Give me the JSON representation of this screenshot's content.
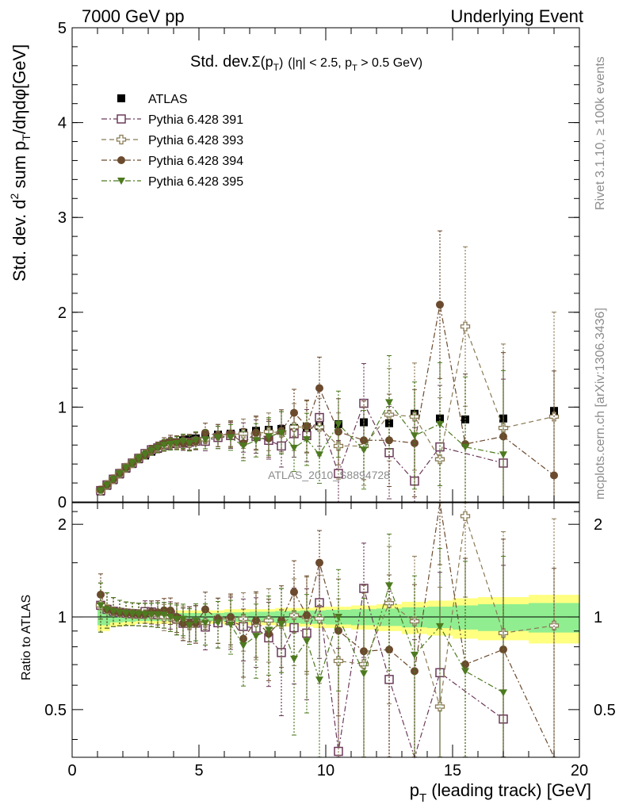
{
  "header": {
    "left": "7000 GeV pp",
    "right": "Underlying Event"
  },
  "side_text": {
    "rivet": "Rivet 3.1.10, ≥ 100k events",
    "mcplots": "mcplots.cern.ch [arXiv:1306.3436]"
  },
  "watermark": "ATLAS_2010_S8894728",
  "chart_data": [
    {
      "type": "scatter",
      "title_parts": {
        "main": "Std. dev.",
        "sigma": "Σ(p",
        "sigma_sub": "T",
        "sigma_close": ")",
        "cuts": "(|η| < 2.5, p",
        "cuts_sub": "T",
        "cuts_end": " > 0.5 GeV)"
      },
      "ylabel_parts": {
        "a": "Std. dev. d",
        "sup": "2",
        "b": " sum p",
        "sub": "T",
        "c": "/dηdφ[GeV]"
      },
      "ylim": [
        0,
        5
      ],
      "xlim": [
        0,
        20
      ],
      "ytick_labels": [
        "0",
        "1",
        "2",
        "3",
        "4",
        "5"
      ],
      "legend_position": "top-left",
      "series": [
        {
          "name": "ATLAS",
          "color": "#000000",
          "marker": "filled-square",
          "line": "none",
          "x": [
            1.125,
            1.375,
            1.625,
            1.875,
            2.125,
            2.375,
            2.625,
            2.875,
            3.125,
            3.375,
            3.625,
            3.875,
            4.125,
            4.375,
            4.625,
            4.875,
            5.25,
            5.75,
            6.25,
            6.75,
            7.25,
            7.75,
            8.25,
            8.75,
            9.25,
            9.75,
            10.5,
            11.5,
            12.5,
            13.5,
            14.5,
            15.5,
            17,
            19
          ],
          "y": [
            0.11,
            0.17,
            0.23,
            0.29,
            0.35,
            0.4,
            0.45,
            0.49,
            0.53,
            0.56,
            0.59,
            0.61,
            0.63,
            0.65,
            0.66,
            0.67,
            0.69,
            0.71,
            0.72,
            0.73,
            0.75,
            0.76,
            0.77,
            0.78,
            0.79,
            0.8,
            0.82,
            0.84,
            0.83,
            0.93,
            0.88,
            0.87,
            0.88,
            0.96
          ]
        },
        {
          "name": "Pythia 6.428 391",
          "color": "#6b3a5a",
          "marker": "open-square",
          "line": "dash-dot",
          "x": [
            1.125,
            1.375,
            1.625,
            1.875,
            2.125,
            2.375,
            2.625,
            2.875,
            3.125,
            3.375,
            3.625,
            3.875,
            4.125,
            4.375,
            4.625,
            4.875,
            5.25,
            5.75,
            6.25,
            6.75,
            7.25,
            7.75,
            8.25,
            8.75,
            9.25,
            9.75,
            10.5,
            11.5,
            12.5,
            13.5,
            14.5,
            17
          ],
          "y": [
            0.12,
            0.18,
            0.24,
            0.3,
            0.36,
            0.41,
            0.46,
            0.51,
            0.55,
            0.57,
            0.6,
            0.62,
            0.62,
            0.62,
            0.63,
            0.64,
            0.64,
            0.68,
            0.7,
            0.68,
            0.69,
            0.65,
            0.59,
            0.72,
            0.7,
            0.89,
            0.3,
            1.04,
            0.52,
            0.22,
            0.58,
            0.41
          ]
        },
        {
          "name": "Pythia 6.428 393",
          "color": "#8b7a55",
          "marker": "open-cross",
          "line": "dash",
          "x": [
            1.125,
            1.375,
            1.625,
            1.875,
            2.125,
            2.375,
            2.625,
            2.875,
            3.125,
            3.375,
            3.625,
            3.875,
            4.125,
            4.375,
            4.625,
            4.875,
            5.25,
            5.75,
            6.25,
            6.75,
            7.25,
            7.75,
            8.25,
            8.75,
            9.25,
            9.75,
            10.5,
            11.5,
            12.5,
            13.5,
            14.5,
            15.5,
            17,
            19
          ],
          "y": [
            0.12,
            0.18,
            0.24,
            0.3,
            0.36,
            0.41,
            0.46,
            0.5,
            0.54,
            0.57,
            0.59,
            0.61,
            0.62,
            0.63,
            0.62,
            0.64,
            0.66,
            0.7,
            0.71,
            0.72,
            0.72,
            0.74,
            0.73,
            0.79,
            0.79,
            0.79,
            0.59,
            0.59,
            0.92,
            0.9,
            0.45,
            1.85,
            0.78,
            0.9
          ]
        },
        {
          "name": "Pythia 6.428 394",
          "color": "#6b4a2e",
          "marker": "filled-circle",
          "line": "dash-dot",
          "x": [
            1.125,
            1.375,
            1.625,
            1.875,
            2.125,
            2.375,
            2.625,
            2.875,
            3.125,
            3.375,
            3.625,
            3.875,
            4.125,
            4.375,
            4.625,
            4.875,
            5.25,
            5.75,
            6.25,
            6.75,
            7.25,
            7.75,
            8.25,
            8.75,
            9.25,
            9.75,
            10.5,
            11.5,
            12.5,
            13.5,
            14.5,
            15.5,
            17,
            19
          ],
          "y": [
            0.13,
            0.18,
            0.24,
            0.3,
            0.36,
            0.41,
            0.46,
            0.5,
            0.55,
            0.58,
            0.62,
            0.64,
            0.63,
            0.62,
            0.63,
            0.64,
            0.73,
            0.7,
            0.72,
            0.62,
            0.73,
            0.67,
            0.75,
            0.94,
            0.8,
            1.2,
            0.74,
            0.65,
            0.65,
            0.62,
            2.08,
            0.61,
            0.69,
            0.28
          ]
        },
        {
          "name": "Pythia 6.428 395",
          "color": "#4d7a1f",
          "marker": "filled-triangle-down",
          "line": "dash-dot",
          "x": [
            1.125,
            1.375,
            1.625,
            1.875,
            2.125,
            2.375,
            2.625,
            2.875,
            3.125,
            3.375,
            3.625,
            3.875,
            4.125,
            4.375,
            4.625,
            4.875,
            5.25,
            5.75,
            6.25,
            6.75,
            7.25,
            7.75,
            8.25,
            8.75,
            9.25,
            9.75,
            10.5,
            11.5,
            12.5,
            13.5,
            14.5,
            15.5,
            17
          ],
          "y": [
            0.12,
            0.18,
            0.24,
            0.3,
            0.36,
            0.41,
            0.46,
            0.5,
            0.54,
            0.57,
            0.6,
            0.61,
            0.62,
            0.64,
            0.62,
            0.65,
            0.66,
            0.68,
            0.68,
            0.59,
            0.65,
            0.69,
            0.73,
            0.57,
            0.66,
            0.5,
            0.82,
            0.55,
            1.05,
            0.7,
            0.82,
            0.58,
            0.5
          ]
        }
      ]
    },
    {
      "type": "scatter",
      "ylabel": "Ratio to ATLAS",
      "xlabel_parts": {
        "a": "p",
        "sub": "T",
        "b": " (leading track) [GeV]"
      },
      "xlim": [
        0,
        20
      ],
      "ylim": [
        0.35,
        2.35
      ],
      "xtick_labels": [
        "0",
        "5",
        "10",
        "15",
        "20"
      ],
      "ytick_labels": [
        "0.5",
        "1",
        "2"
      ],
      "reference_line": 1,
      "band_x_edges": [
        1,
        1.5,
        2,
        2.5,
        3,
        3.5,
        4,
        4.5,
        5,
        5.5,
        6,
        6.5,
        7,
        7.5,
        8,
        8.5,
        9,
        9.5,
        10,
        11,
        12,
        13,
        14,
        15,
        16,
        18,
        20
      ],
      "band_yellow_halfwidth": [
        0.1,
        0.07,
        0.06,
        0.05,
        0.05,
        0.05,
        0.05,
        0.05,
        0.05,
        0.05,
        0.06,
        0.06,
        0.06,
        0.06,
        0.07,
        0.07,
        0.07,
        0.08,
        0.08,
        0.09,
        0.1,
        0.12,
        0.13,
        0.15,
        0.16,
        0.18
      ],
      "band_green_halfwidth": [
        0.06,
        0.04,
        0.035,
        0.03,
        0.03,
        0.03,
        0.03,
        0.03,
        0.03,
        0.03,
        0.035,
        0.035,
        0.04,
        0.04,
        0.045,
        0.045,
        0.05,
        0.05,
        0.055,
        0.06,
        0.065,
        0.075,
        0.08,
        0.09,
        0.1,
        0.11
      ],
      "band_colors": {
        "outer": "#ffff80",
        "inner": "#90ee90"
      }
    }
  ]
}
